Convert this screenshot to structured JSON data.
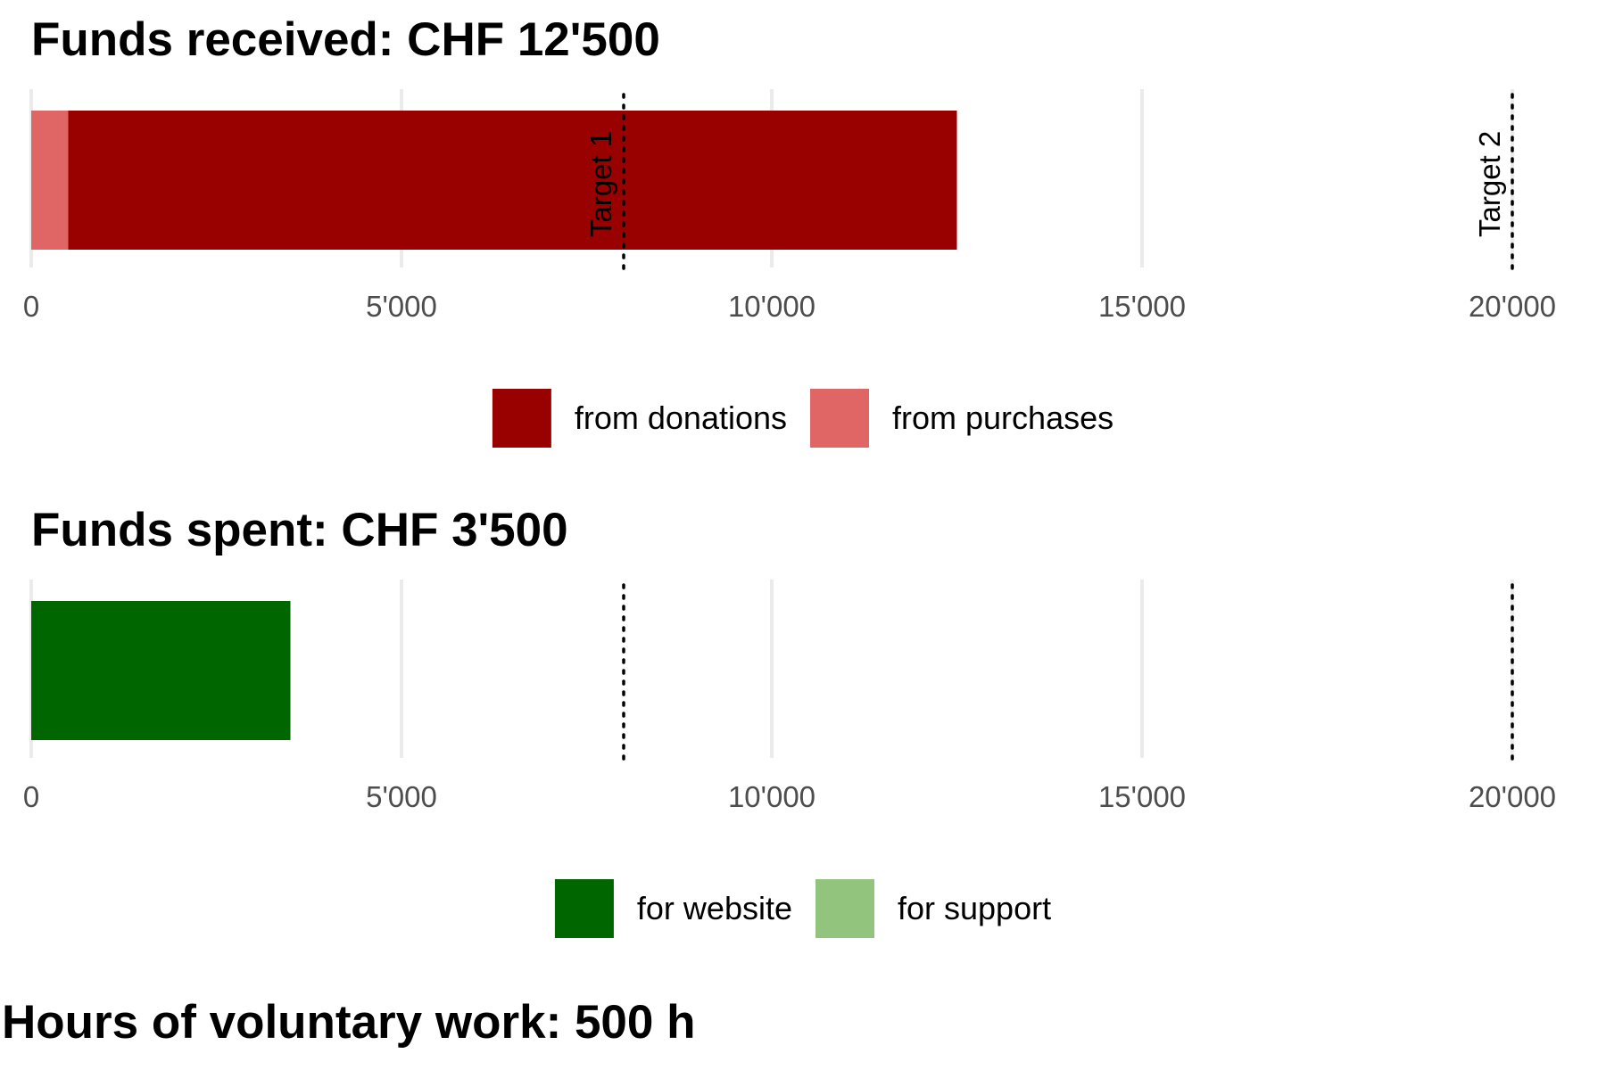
{
  "colors": {
    "donations": "#990000",
    "purchases": "#e06666",
    "website": "#006600",
    "support": "#93c47d",
    "tick_text": "#4d4d4d",
    "grid": "#ebebeb"
  },
  "chart_data": [
    {
      "type": "bar",
      "orientation": "horizontal",
      "stacked": true,
      "title": "Funds received: CHF 12'500",
      "xlim": [
        0,
        20000
      ],
      "x_ticks": [
        0,
        5000,
        10000,
        15000,
        20000
      ],
      "x_tick_labels": [
        "0",
        "5'000",
        "10'000",
        "15'000",
        "20'000"
      ],
      "grid": true,
      "legend_position": "bottom",
      "series": [
        {
          "name": "from purchases",
          "values": [
            500
          ],
          "color": "#e06666"
        },
        {
          "name": "from donations",
          "values": [
            12000
          ],
          "color": "#990000"
        }
      ],
      "legend_order": [
        "from donations",
        "from purchases"
      ],
      "reference_lines": [
        {
          "label": "Target 1",
          "value": 8000
        },
        {
          "label": "Target 2",
          "value": 20000
        }
      ]
    },
    {
      "type": "bar",
      "orientation": "horizontal",
      "stacked": true,
      "title": "Funds spent: CHF 3'500",
      "xlim": [
        0,
        20000
      ],
      "x_ticks": [
        0,
        5000,
        10000,
        15000,
        20000
      ],
      "x_tick_labels": [
        "0",
        "5'000",
        "10'000",
        "15'000",
        "20'000"
      ],
      "grid": true,
      "legend_position": "bottom",
      "series": [
        {
          "name": "for support",
          "values": [
            0
          ],
          "color": "#93c47d"
        },
        {
          "name": "for website",
          "values": [
            3500
          ],
          "color": "#006600"
        }
      ],
      "legend_order": [
        "for website",
        "for support"
      ],
      "reference_lines": [
        {
          "label": "",
          "value": 8000
        },
        {
          "label": "",
          "value": 20000
        }
      ]
    }
  ],
  "footer": {
    "title": "Hours of voluntary work: 500 h"
  }
}
